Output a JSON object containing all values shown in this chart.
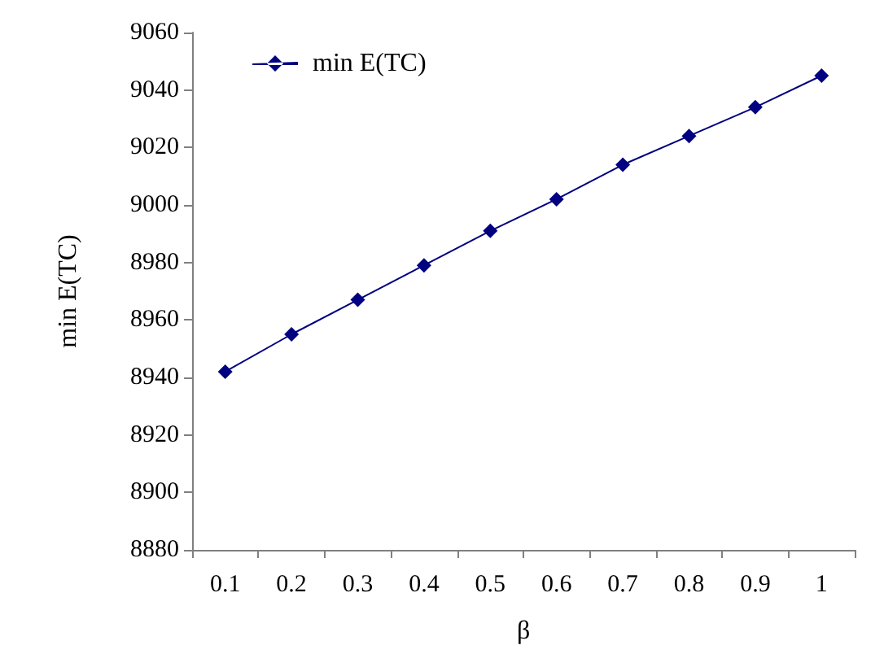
{
  "chart_data": {
    "type": "line",
    "xlabel": "β",
    "ylabel": "min E(TC)",
    "categories": [
      "0.1",
      "0.2",
      "0.3",
      "0.4",
      "0.5",
      "0.6",
      "0.7",
      "0.8",
      "0.9",
      "1"
    ],
    "series": [
      {
        "name": "min E(TC)",
        "color": "#000080",
        "values": [
          8942,
          8955,
          8967,
          8979,
          8991,
          9002,
          9014,
          9024,
          9034,
          9045
        ]
      }
    ],
    "ylim": [
      8880,
      9060
    ],
    "yticks": [
      8880,
      8900,
      8920,
      8940,
      8960,
      8980,
      9000,
      9020,
      9040,
      9060
    ],
    "grid": false,
    "legend": "top left",
    "marker": "diamond",
    "line_style": "solid"
  }
}
